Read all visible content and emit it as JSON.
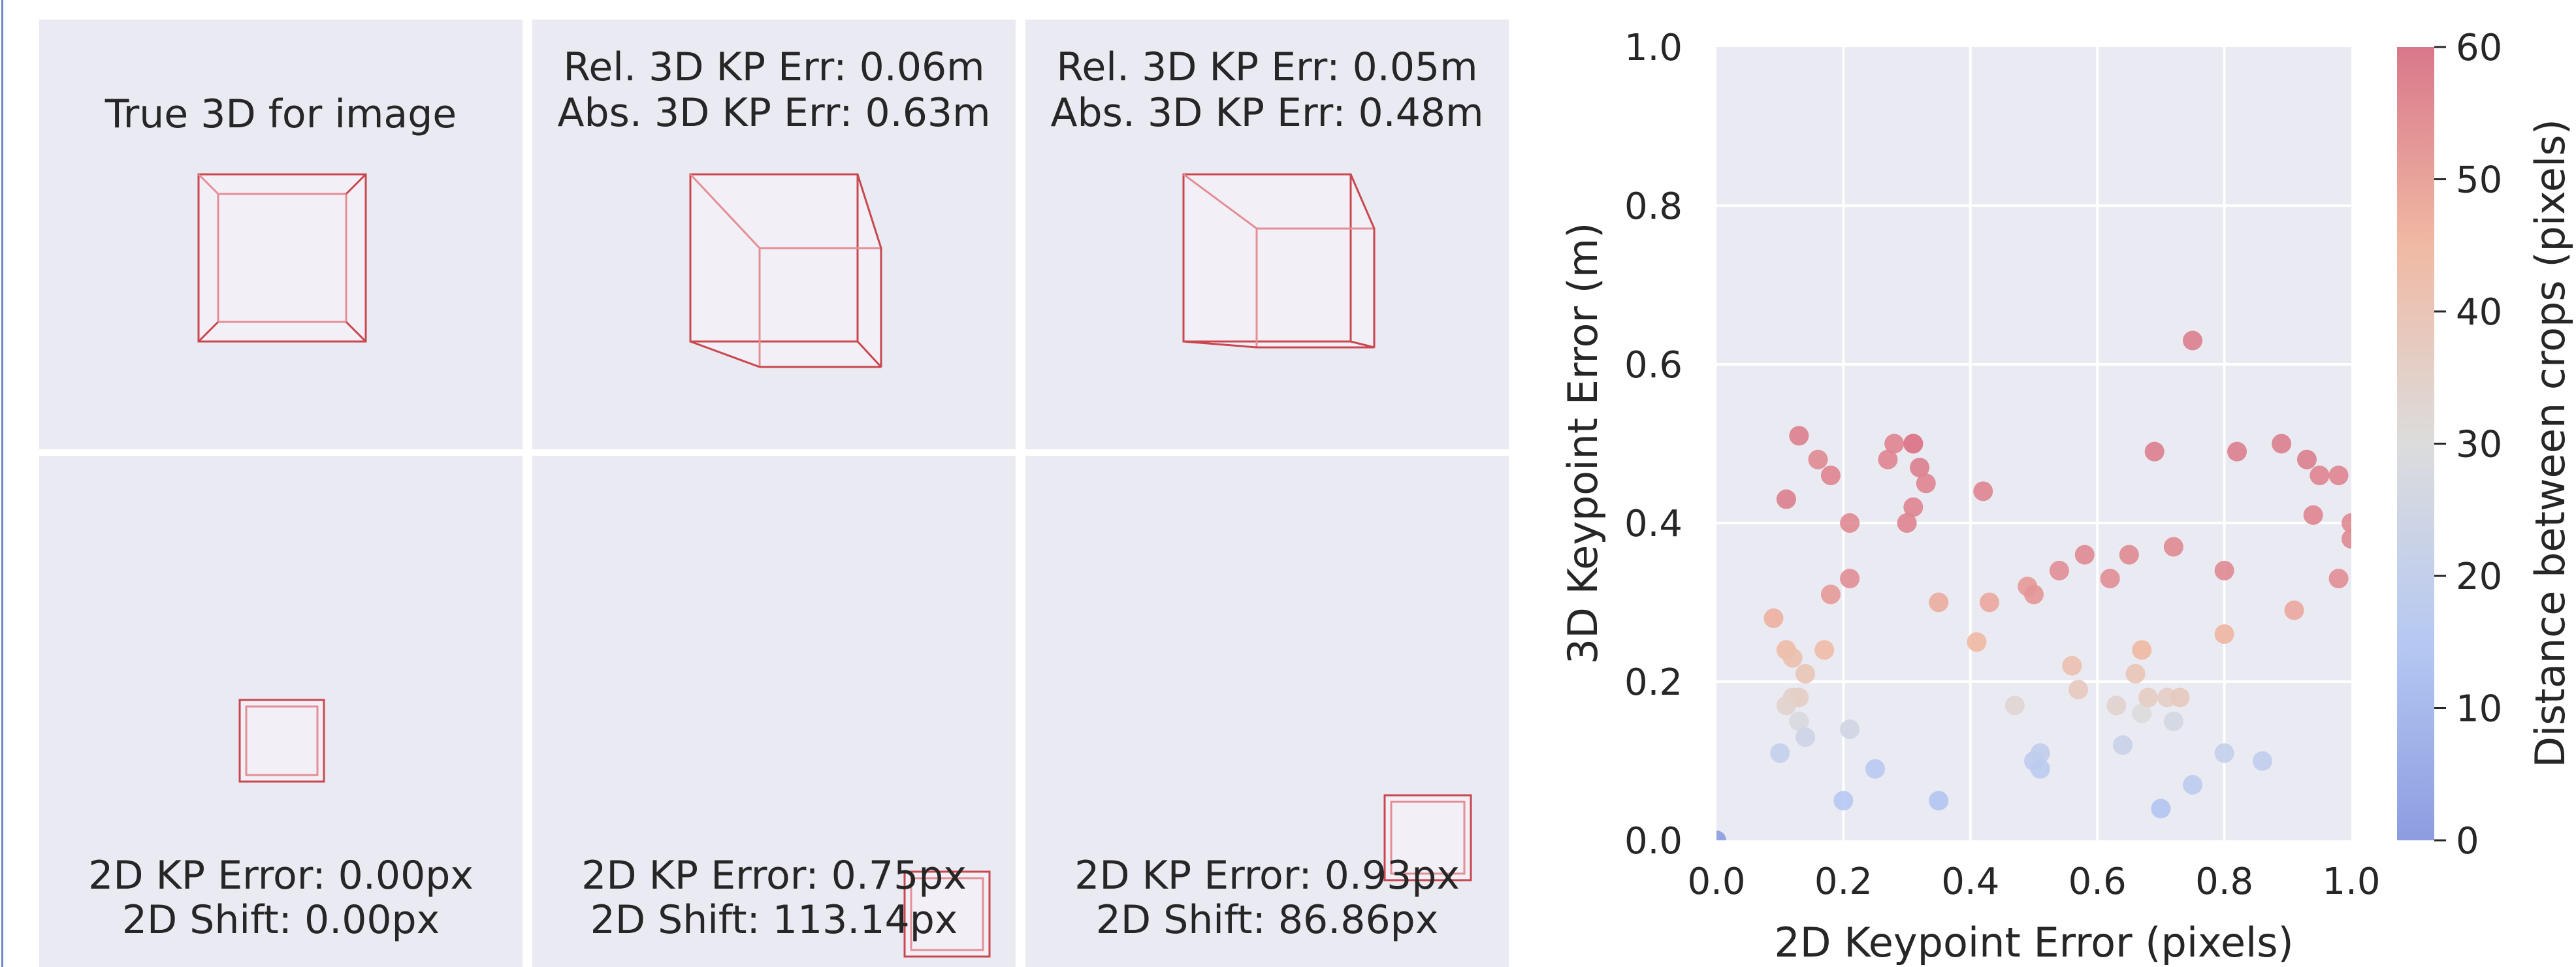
{
  "panels": {
    "top_left": {
      "line1": "True 3D for image"
    },
    "top_mid": {
      "line1": "Rel. 3D KP Err: 0.06m",
      "line2": "Abs. 3D KP Err: 0.63m"
    },
    "top_right": {
      "line1": "Rel. 3D KP Err: 0.05m",
      "line2": "Abs. 3D KP Err: 0.48m"
    },
    "bottom_left": {
      "line1": "2D KP Error: 0.00px",
      "line2": "2D Shift: 0.00px"
    },
    "bottom_mid": {
      "line1": "2D KP Error: 0.75px",
      "line2": "2D Shift: 113.14px"
    },
    "bottom_right": {
      "line1": "2D KP Error: 0.93px",
      "line2": "2D Shift: 86.86px"
    }
  },
  "colors": {
    "panel_bg": "#eaeaf2",
    "box_stroke": "#c9474f",
    "box_inner_stroke": "#e38f96",
    "box_fill": "#f2eff6"
  },
  "chart_data": {
    "type": "scatter",
    "xlabel": "2D Keypoint Error (pixels)",
    "ylabel": "3D Keypoint Error (m)",
    "xlim": [
      0,
      1
    ],
    "ylim": [
      0,
      1
    ],
    "xticks": [
      "0.0",
      "0.2",
      "0.4",
      "0.6",
      "0.8",
      "1.0"
    ],
    "yticks": [
      "0.0",
      "0.2",
      "0.4",
      "0.6",
      "0.8",
      "1.0"
    ],
    "grid": true,
    "colorbar": {
      "label": "Distance between crops (pixels)",
      "range": [
        0,
        60
      ],
      "ticks": [
        "0",
        "10",
        "20",
        "30",
        "40",
        "50",
        "60"
      ],
      "colormap": "coolwarm"
    },
    "points": [
      {
        "x": 0.0,
        "y": 0.0,
        "c": 0
      },
      {
        "x": 0.11,
        "y": 0.43,
        "c": 58
      },
      {
        "x": 0.13,
        "y": 0.51,
        "c": 58
      },
      {
        "x": 0.16,
        "y": 0.48,
        "c": 56
      },
      {
        "x": 0.18,
        "y": 0.46,
        "c": 57
      },
      {
        "x": 0.21,
        "y": 0.4,
        "c": 56
      },
      {
        "x": 0.27,
        "y": 0.48,
        "c": 57
      },
      {
        "x": 0.28,
        "y": 0.5,
        "c": 57
      },
      {
        "x": 0.31,
        "y": 0.5,
        "c": 60
      },
      {
        "x": 0.31,
        "y": 0.5,
        "c": 59
      },
      {
        "x": 0.32,
        "y": 0.47,
        "c": 58
      },
      {
        "x": 0.33,
        "y": 0.45,
        "c": 57
      },
      {
        "x": 0.31,
        "y": 0.42,
        "c": 57
      },
      {
        "x": 0.3,
        "y": 0.4,
        "c": 57
      },
      {
        "x": 0.21,
        "y": 0.33,
        "c": 55
      },
      {
        "x": 0.18,
        "y": 0.31,
        "c": 52
      },
      {
        "x": 0.35,
        "y": 0.3,
        "c": 48
      },
      {
        "x": 0.42,
        "y": 0.44,
        "c": 57
      },
      {
        "x": 0.09,
        "y": 0.28,
        "c": 47
      },
      {
        "x": 0.11,
        "y": 0.24,
        "c": 44
      },
      {
        "x": 0.12,
        "y": 0.23,
        "c": 42
      },
      {
        "x": 0.14,
        "y": 0.21,
        "c": 40
      },
      {
        "x": 0.17,
        "y": 0.24,
        "c": 44
      },
      {
        "x": 0.12,
        "y": 0.18,
        "c": 35
      },
      {
        "x": 0.13,
        "y": 0.18,
        "c": 36
      },
      {
        "x": 0.11,
        "y": 0.17,
        "c": 34
      },
      {
        "x": 0.13,
        "y": 0.15,
        "c": 28
      },
      {
        "x": 0.14,
        "y": 0.13,
        "c": 24
      },
      {
        "x": 0.1,
        "y": 0.11,
        "c": 20
      },
      {
        "x": 0.21,
        "y": 0.14,
        "c": 25
      },
      {
        "x": 0.25,
        "y": 0.09,
        "c": 16
      },
      {
        "x": 0.2,
        "y": 0.05,
        "c": 15
      },
      {
        "x": 0.35,
        "y": 0.05,
        "c": 14
      },
      {
        "x": 0.41,
        "y": 0.25,
        "c": 45
      },
      {
        "x": 0.43,
        "y": 0.3,
        "c": 49
      },
      {
        "x": 0.47,
        "y": 0.17,
        "c": 33
      },
      {
        "x": 0.49,
        "y": 0.32,
        "c": 52
      },
      {
        "x": 0.5,
        "y": 0.31,
        "c": 53
      },
      {
        "x": 0.5,
        "y": 0.1,
        "c": 18
      },
      {
        "x": 0.51,
        "y": 0.11,
        "c": 19
      },
      {
        "x": 0.51,
        "y": 0.09,
        "c": 17
      },
      {
        "x": 0.54,
        "y": 0.34,
        "c": 55
      },
      {
        "x": 0.56,
        "y": 0.22,
        "c": 42
      },
      {
        "x": 0.57,
        "y": 0.19,
        "c": 38
      },
      {
        "x": 0.58,
        "y": 0.36,
        "c": 56
      },
      {
        "x": 0.62,
        "y": 0.33,
        "c": 55
      },
      {
        "x": 0.63,
        "y": 0.17,
        "c": 34
      },
      {
        "x": 0.64,
        "y": 0.12,
        "c": 22
      },
      {
        "x": 0.65,
        "y": 0.36,
        "c": 56
      },
      {
        "x": 0.66,
        "y": 0.21,
        "c": 40
      },
      {
        "x": 0.67,
        "y": 0.16,
        "c": 30
      },
      {
        "x": 0.67,
        "y": 0.24,
        "c": 45
      },
      {
        "x": 0.68,
        "y": 0.18,
        "c": 37
      },
      {
        "x": 0.69,
        "y": 0.49,
        "c": 58
      },
      {
        "x": 0.7,
        "y": 0.04,
        "c": 14
      },
      {
        "x": 0.71,
        "y": 0.18,
        "c": 36
      },
      {
        "x": 0.72,
        "y": 0.37,
        "c": 56
      },
      {
        "x": 0.72,
        "y": 0.15,
        "c": 26
      },
      {
        "x": 0.73,
        "y": 0.18,
        "c": 38
      },
      {
        "x": 0.75,
        "y": 0.63,
        "c": 58
      },
      {
        "x": 0.75,
        "y": 0.07,
        "c": 17
      },
      {
        "x": 0.8,
        "y": 0.34,
        "c": 56
      },
      {
        "x": 0.8,
        "y": 0.26,
        "c": 46
      },
      {
        "x": 0.8,
        "y": 0.11,
        "c": 20
      },
      {
        "x": 0.82,
        "y": 0.49,
        "c": 58
      },
      {
        "x": 0.86,
        "y": 0.1,
        "c": 19
      },
      {
        "x": 0.89,
        "y": 0.5,
        "c": 58
      },
      {
        "x": 0.91,
        "y": 0.29,
        "c": 49
      },
      {
        "x": 0.93,
        "y": 0.48,
        "c": 58
      },
      {
        "x": 0.94,
        "y": 0.41,
        "c": 57
      },
      {
        "x": 0.95,
        "y": 0.46,
        "c": 57
      },
      {
        "x": 0.98,
        "y": 0.46,
        "c": 57
      },
      {
        "x": 0.98,
        "y": 0.33,
        "c": 55
      },
      {
        "x": 1.0,
        "y": 0.38,
        "c": 56
      },
      {
        "x": 1.0,
        "y": 0.4,
        "c": 56
      }
    ]
  }
}
